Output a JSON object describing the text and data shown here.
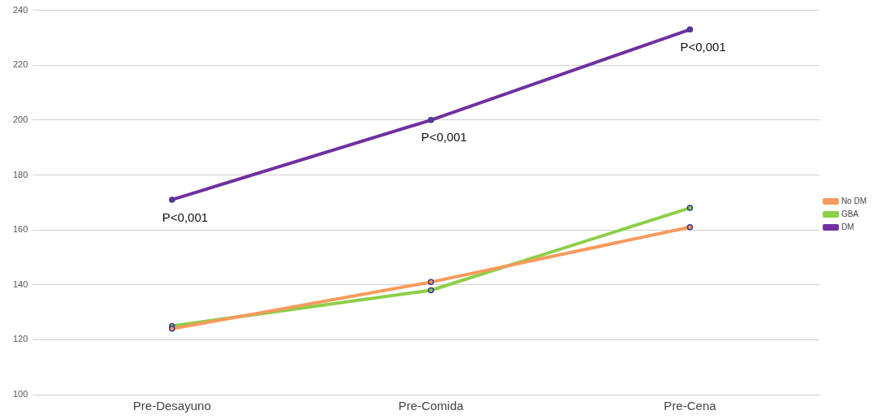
{
  "chart_data": {
    "type": "line",
    "categories": [
      "Pre-Desayuno",
      "Pre-Comida",
      "Pre-Cena"
    ],
    "series": [
      {
        "name": "No DM",
        "color": "#f79a5c",
        "values": [
          124,
          141,
          161
        ]
      },
      {
        "name": "GBA",
        "color": "#8ccf48",
        "values": [
          125,
          138,
          168
        ]
      },
      {
        "name": "DM",
        "color": "#7030a0",
        "values": [
          171,
          200,
          233
        ]
      }
    ],
    "ylim": [
      100,
      240
    ],
    "yticks": [
      100,
      120,
      140,
      160,
      180,
      200,
      220,
      240
    ],
    "grid": "y",
    "legend": "right",
    "marker": "circle",
    "line_style": "solid",
    "annotations": [
      {
        "text": "P<0,001",
        "x": "Pre-Desayuno",
        "y": 171
      },
      {
        "text": "P<0,001",
        "x": "Pre-Comida",
        "y": 200
      },
      {
        "text": "P<0,001",
        "x": "Pre-Cena",
        "y": 233
      }
    ]
  }
}
